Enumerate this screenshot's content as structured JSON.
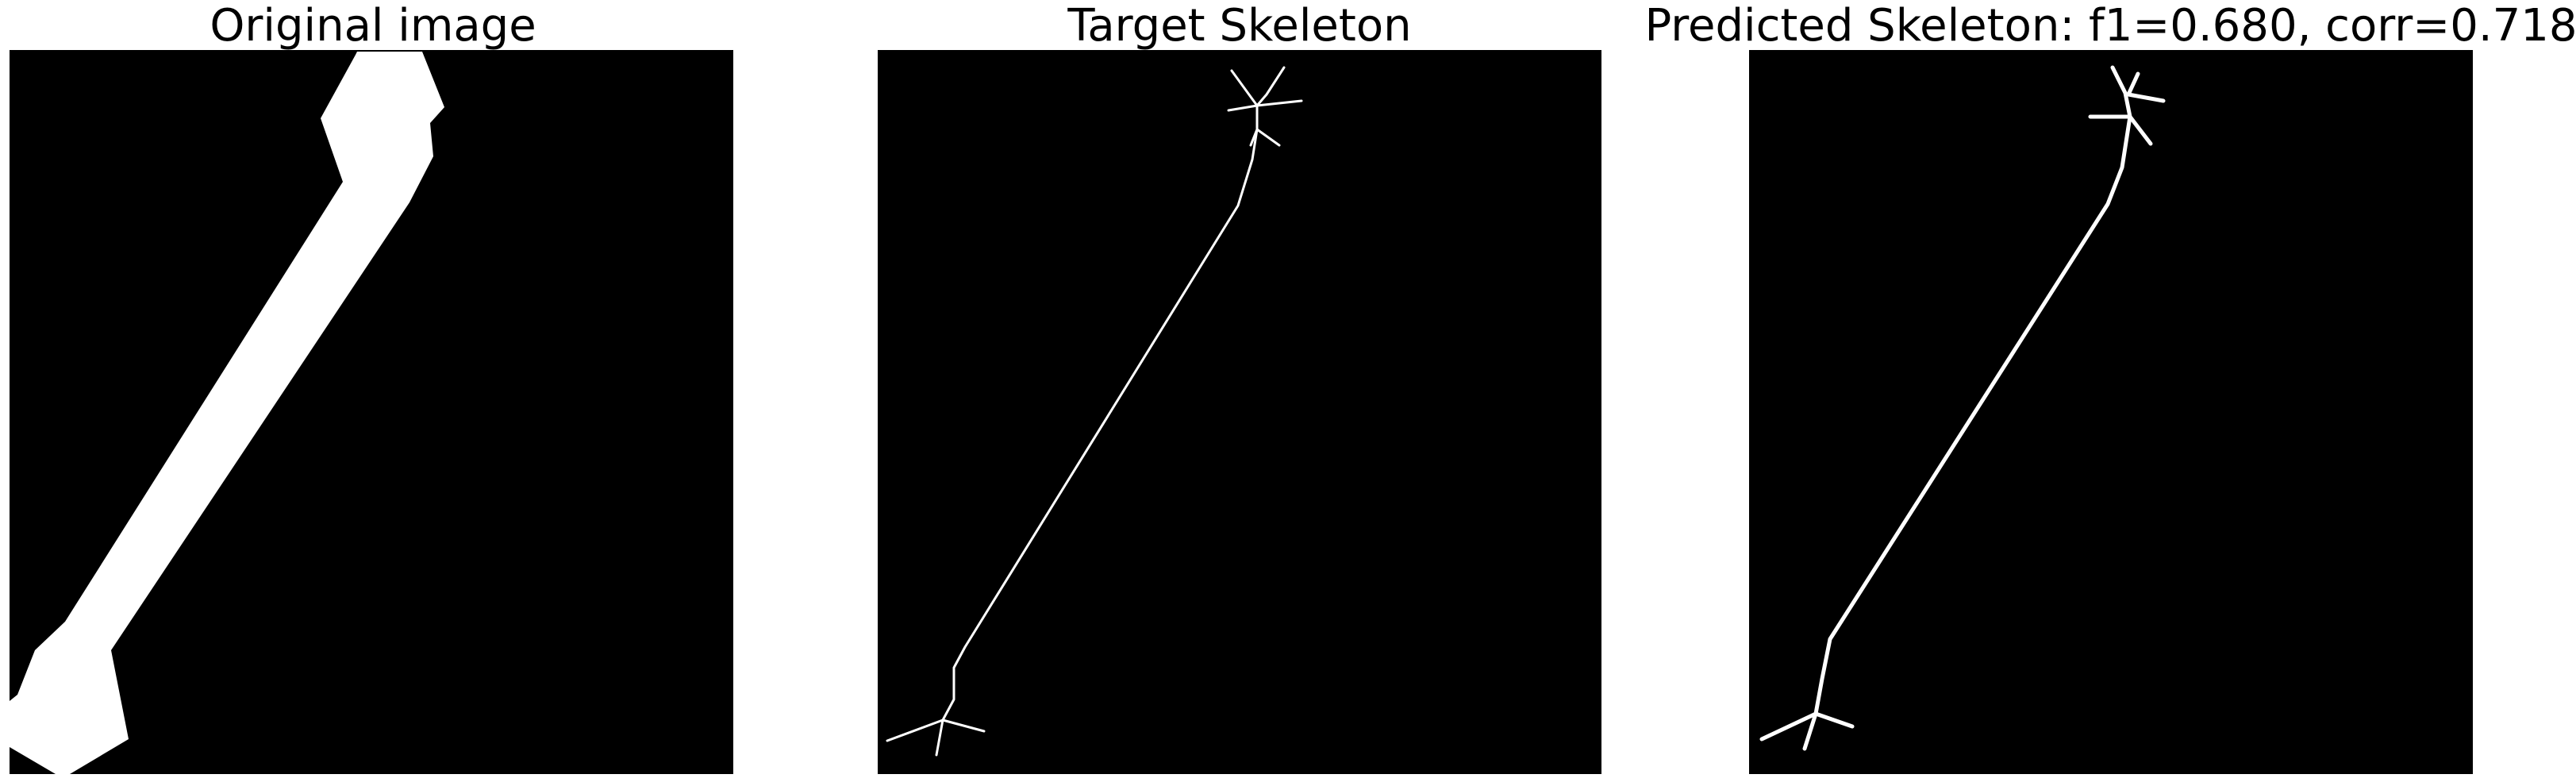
{
  "panels": [
    {
      "title": "Original image"
    },
    {
      "title": "Target Skeleton"
    },
    {
      "title": "Predicted Skeleton: f1=0.680, corr=0.718"
    }
  ],
  "colors": {
    "background": "#000000",
    "foreground": "#ffffff",
    "page": "#ffffff"
  }
}
